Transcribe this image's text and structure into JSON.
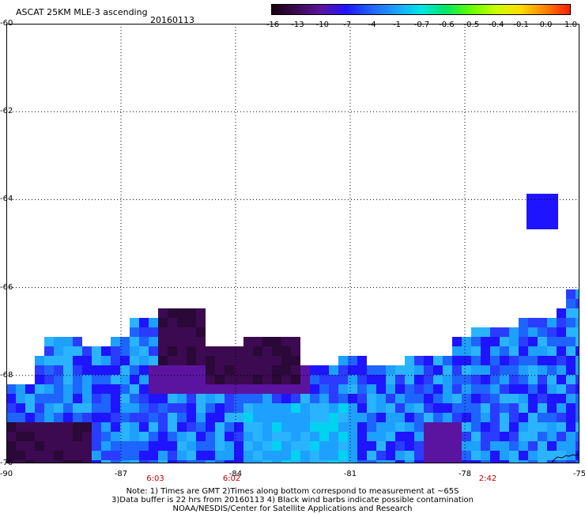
{
  "header": {
    "title": "ASCAT 25KM MLE-3 ascending",
    "date": "20160113"
  },
  "colorbar": {
    "labels": [
      "-16",
      "-13",
      "-10",
      "-7",
      "-4",
      "-1",
      "-0.7",
      "-0.6",
      "-0.5",
      "-0.4",
      "-0.1",
      "0.0",
      "1.0"
    ],
    "colors": [
      "#1a0014",
      "#3c0a50",
      "#5a14a0",
      "#1e14ff",
      "#1e64ff",
      "#1ea0ff",
      "#00e6e6",
      "#00e664",
      "#64ff00",
      "#c8ff00",
      "#ffdc00",
      "#ff8200",
      "#ff1e00"
    ]
  },
  "axes": {
    "lat_labels": [
      "-60",
      "-62",
      "-64",
      "-66",
      "-68",
      "-70"
    ],
    "lon_labels": [
      "-90",
      "-87",
      "-84",
      "-81",
      "-78",
      "-75"
    ],
    "lat_range": [
      -70,
      -60
    ],
    "lon_range": [
      -90,
      -75
    ]
  },
  "times": [
    {
      "text": "6:03",
      "lon": -86.1
    },
    {
      "text": "6:02",
      "lon": -84.1
    },
    {
      "text": "2:42",
      "lon": -77.4
    }
  ],
  "notes": [
    "Note: 1) Times are GMT 2)Times along bottom correspond to measurement at ~65S",
    "3)Data buffer is 22 hrs from 20160113 4) Black wind barbs indicate possible contamination",
    "NOAA/NESDIS/Center for Satellite Applications and Research"
  ]
}
